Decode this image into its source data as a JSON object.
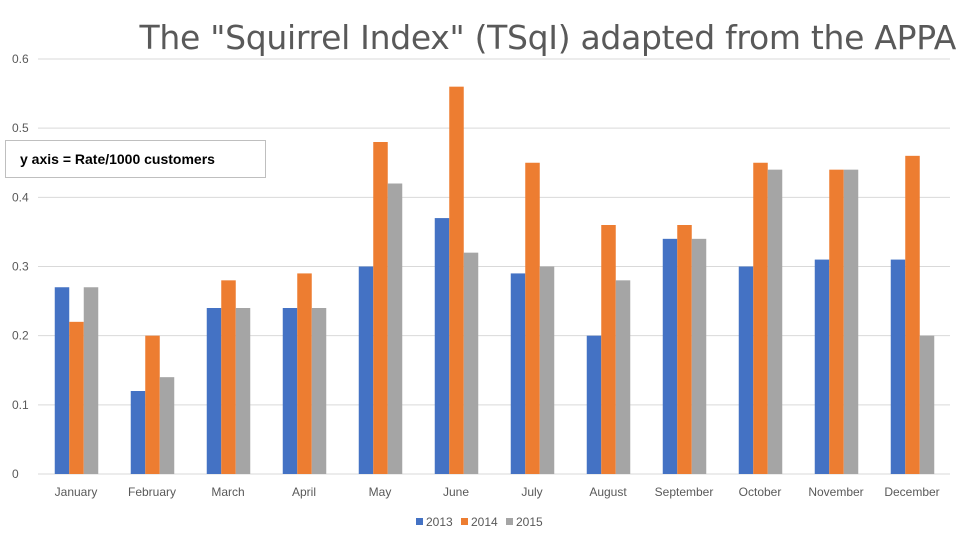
{
  "chart_data": {
    "type": "bar",
    "title": "The \"Squirrel Index\" (TSqI) adapted from the APPA",
    "annotation": "y axis = Rate/1000 customers",
    "categories": [
      "January",
      "February",
      "March",
      "April",
      "May",
      "June",
      "July",
      "August",
      "September",
      "October",
      "November",
      "December"
    ],
    "series": [
      {
        "name": "2013",
        "color": "#4472C4",
        "values": [
          0.27,
          0.12,
          0.24,
          0.24,
          0.3,
          0.37,
          0.29,
          0.2,
          0.34,
          0.3,
          0.31,
          0.31
        ]
      },
      {
        "name": "2014",
        "color": "#ED7D31",
        "values": [
          0.22,
          0.2,
          0.28,
          0.29,
          0.48,
          0.56,
          0.45,
          0.36,
          0.36,
          0.45,
          0.44,
          0.46
        ]
      },
      {
        "name": "2015",
        "color": "#A5A5A5",
        "values": [
          0.27,
          0.14,
          0.24,
          0.24,
          0.42,
          0.32,
          0.3,
          0.28,
          0.34,
          0.44,
          0.44,
          0.2
        ]
      }
    ],
    "yticks": [
      "0",
      "0.1",
      "0.2",
      "0.3",
      "0.4",
      "0.5",
      "0.6"
    ],
    "ylim": [
      0,
      0.6
    ],
    "grid": true,
    "legend": "bottom"
  }
}
